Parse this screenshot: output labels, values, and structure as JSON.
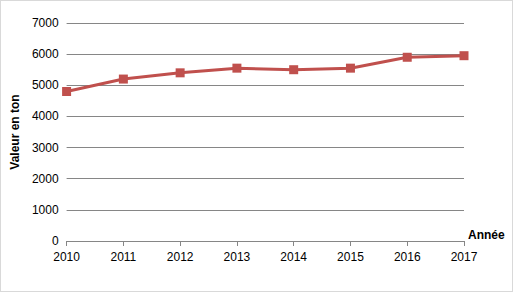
{
  "chart_data": {
    "type": "line",
    "x": [
      2010,
      2011,
      2012,
      2013,
      2014,
      2015,
      2016,
      2017
    ],
    "values": [
      4800,
      5200,
      5400,
      5550,
      5500,
      5550,
      5900,
      5950
    ],
    "color": "#c0504d",
    "marker": "square",
    "xlabel": "Année",
    "ylabel": "Valeur en ton",
    "ylim": [
      0,
      7000
    ],
    "yticks": [
      0,
      1000,
      2000,
      3000,
      4000,
      5000,
      6000,
      7000
    ],
    "grid": true
  }
}
